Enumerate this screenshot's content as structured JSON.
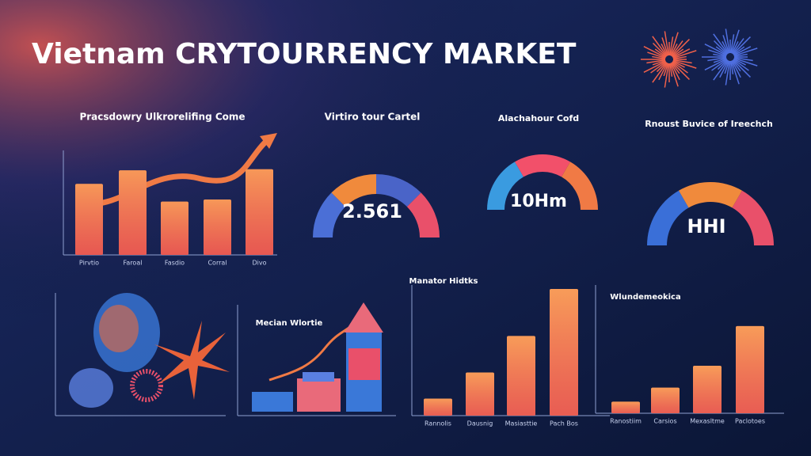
{
  "title": "Vietnam CRYTOURRENCY MARKET",
  "chart_data": [
    {
      "type": "bar",
      "title": "Pracsdowry Ulkrorelifing Come",
      "categories": [
        "Pirvtio",
        "Faroal",
        "Fasdio",
        "Corral",
        "Divo"
      ],
      "values": [
        68,
        81,
        51,
        53,
        82
      ],
      "ylim": [
        0,
        100
      ],
      "color": "#f0683c"
    },
    {
      "type": "gauge",
      "title": "Virtiro tour Cartel",
      "center_label": 2.561,
      "colors": [
        "#4b6fd6",
        "#f08a3c",
        "#4a64c8",
        "#e9506a"
      ]
    },
    {
      "type": "gauge",
      "title": "Alachahour Cofd",
      "center_label": "10Hm",
      "colors": [
        "#3a9be0",
        "#f2506a",
        "#f07a45"
      ]
    },
    {
      "type": "gauge",
      "title": "Rnoust Buvice of Ireechch",
      "center_label": "HHI",
      "colors": [
        "#3a6fd8",
        "#f08a3c",
        "#e9506a"
      ]
    },
    {
      "type": "bar",
      "title": "Manator Hidtks",
      "categories": [
        "Rannolis",
        "Dausnig",
        "Masiasttie",
        "Pach Bos"
      ],
      "values": [
        13,
        33,
        61,
        97
      ],
      "ylim": [
        0,
        100
      ],
      "color": "#f2703e"
    },
    {
      "type": "bar",
      "title": "Wlundemeokica",
      "categories": [
        "Ranostiim",
        "Carsios",
        "Mexasltme",
        "Paclotoes"
      ],
      "values": [
        9,
        20,
        37,
        68
      ],
      "ylim": [
        0,
        100
      ],
      "color": "#f2703e"
    },
    {
      "type": "illustration",
      "title": "Mecian Wlortie"
    }
  ]
}
